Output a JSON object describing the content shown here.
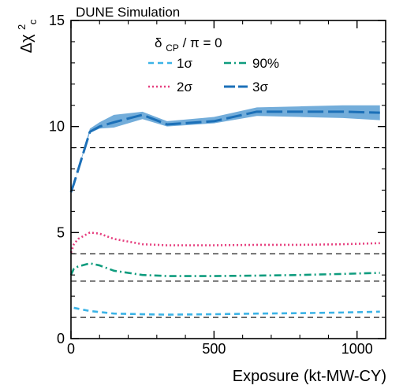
{
  "chart_data": {
    "type": "line",
    "header": "DUNE Simulation",
    "xlabel": "Exposure (kt-MW-CY)",
    "ylabel": {
      "main": "Δχ",
      "sup": "2",
      "sub": "c"
    },
    "xlim": [
      0,
      1100
    ],
    "ylim": [
      0,
      15
    ],
    "xticks": [
      0,
      500,
      1000
    ],
    "xtick_labels": [
      "0",
      "500",
      "1000"
    ],
    "yticks": [
      0,
      5,
      10,
      15
    ],
    "ytick_labels": [
      "0",
      "5",
      "10",
      "15"
    ],
    "grid": false,
    "legend": {
      "placement": "top-center",
      "title": {
        "main": "δ",
        "sub": "CP",
        "rest": " / π = 0"
      },
      "entries": [
        {
          "label": "1σ",
          "series": "1sigma"
        },
        {
          "label": "90%",
          "series": "90pct"
        },
        {
          "label": "2σ",
          "series": "2sigma"
        },
        {
          "label": "3σ",
          "series": "3sigma"
        }
      ]
    },
    "threshold_lines": [
      1.0,
      2.71,
      4.0,
      9.0
    ],
    "series": [
      {
        "id": "1sigma",
        "label": "1σ",
        "color": "#3bb3e6",
        "style": "short-dash",
        "x": [
          10,
          66,
          150,
          250,
          336,
          500,
          650,
          800,
          950,
          1080
        ],
        "y": [
          1.45,
          1.3,
          1.18,
          1.15,
          1.13,
          1.15,
          1.18,
          1.2,
          1.23,
          1.27
        ]
      },
      {
        "id": "90pct",
        "label": "90%",
        "color": "#0f9c7e",
        "style": "dash-dot",
        "x": [
          0,
          10,
          25,
          66,
          100,
          150,
          250,
          336,
          500,
          650,
          800,
          950,
          1080
        ],
        "y": [
          3.0,
          3.3,
          3.4,
          3.55,
          3.45,
          3.2,
          3.0,
          2.95,
          2.95,
          2.97,
          3.0,
          3.05,
          3.1
        ]
      },
      {
        "id": "2sigma",
        "label": "2σ",
        "color": "#e63e7e",
        "style": "dotted",
        "x": [
          0,
          10,
          25,
          66,
          100,
          150,
          250,
          336,
          500,
          650,
          800,
          950,
          1080
        ],
        "y": [
          4.05,
          4.45,
          4.7,
          5.0,
          4.95,
          4.7,
          4.45,
          4.4,
          4.4,
          4.42,
          4.42,
          4.45,
          4.5
        ]
      },
      {
        "id": "3sigma",
        "label": "3σ",
        "color": "#1c70b8",
        "style": "long-dash",
        "band_color": "#5b9fd4",
        "x": [
          0,
          10,
          66,
          100,
          150,
          250,
          336,
          500,
          650,
          800,
          950,
          1080
        ],
        "y": [
          6.9,
          7.3,
          9.75,
          10.0,
          10.2,
          10.55,
          10.1,
          10.25,
          10.7,
          10.7,
          10.7,
          10.65
        ],
        "band_low": [
          6.9,
          7.3,
          9.7,
          9.9,
          9.95,
          10.35,
          10.0,
          10.15,
          10.5,
          10.45,
          10.4,
          10.3
        ],
        "band_high": [
          6.9,
          7.3,
          9.9,
          10.2,
          10.55,
          10.7,
          10.25,
          10.45,
          10.9,
          10.95,
          11.0,
          11.0
        ]
      }
    ]
  }
}
